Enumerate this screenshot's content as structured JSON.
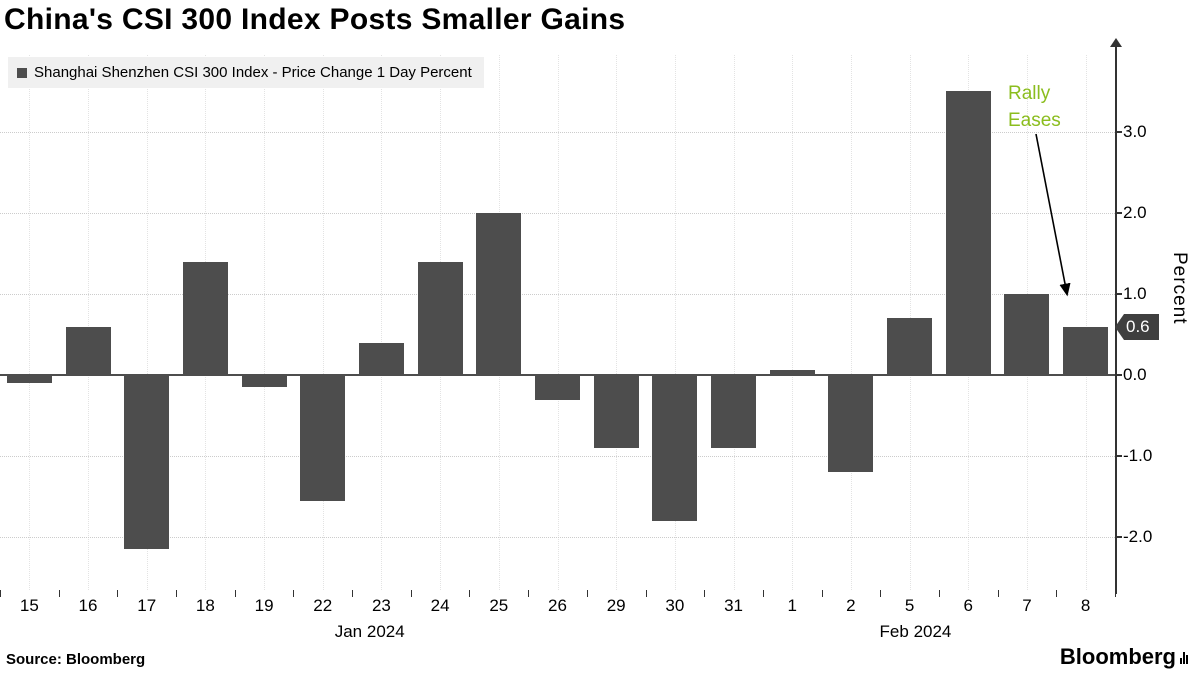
{
  "title": "China's CSI 300 Index Posts Smaller Gains",
  "legend": {
    "label": "Shanghai Shenzhen CSI 300 Index - Price Change 1 Day Percent"
  },
  "annotation": {
    "line1": "Rally",
    "line2": "Eases",
    "color": "#8bbd1e"
  },
  "value_badge": "0.6",
  "source": "Source: Bloomberg",
  "brand": "Bloomberg",
  "chart_data": {
    "type": "bar",
    "title": "China's CSI 300 Index Posts Smaller Gains",
    "series_name": "Shanghai Shenzhen CSI 300 Index - Price Change 1 Day Percent",
    "categories": [
      "15",
      "16",
      "17",
      "18",
      "19",
      "22",
      "23",
      "24",
      "25",
      "26",
      "29",
      "30",
      "31",
      "1",
      "2",
      "5",
      "6",
      "7",
      "8"
    ],
    "values": [
      -0.1,
      0.6,
      -2.15,
      1.4,
      -0.15,
      -1.55,
      0.4,
      1.4,
      2.0,
      -0.3,
      -0.9,
      -1.8,
      -0.9,
      0.07,
      -1.2,
      0.7,
      3.5,
      1.0,
      0.6
    ],
    "month_labels": [
      {
        "label": "Jan 2024",
        "center_index": 5.8
      },
      {
        "label": "Feb 2024",
        "center_index": 15.1
      }
    ],
    "xlabel": "",
    "ylabel": "Percent",
    "yticks": [
      3.0,
      2.0,
      1.0,
      0.0,
      -1.0,
      -2.0
    ],
    "ylim": [
      -2.65,
      3.95
    ],
    "last_value": 0.6,
    "bar_color": "#4d4d4d",
    "grid": true,
    "legend_position": "top-left"
  }
}
